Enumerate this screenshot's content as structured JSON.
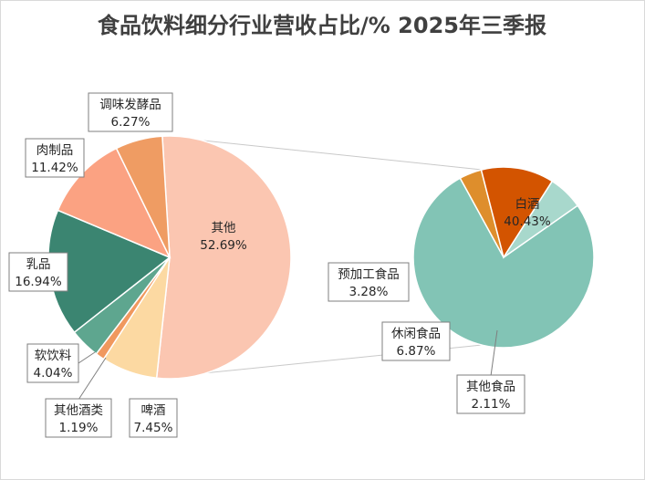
{
  "title": "食品饮料细分行业营收占比/% 2025年三季报",
  "chart_data": {
    "type": "pie",
    "subtype": "pie-of-pie",
    "title": "食品饮料细分行业营收占比/% 2025年三季报",
    "main_pie": [
      {
        "name": "其他",
        "value": 52.69,
        "label": "52.69%",
        "color": "#fbc6b1"
      },
      {
        "name": "啤酒",
        "value": 7.45,
        "label": "7.45%",
        "color": "#fcd9a2"
      },
      {
        "name": "其他酒类",
        "value": 1.19,
        "label": "1.19%",
        "color": "#f0985e"
      },
      {
        "name": "软饮料",
        "value": 4.04,
        "label": "4.04%",
        "color": "#5ea68f"
      },
      {
        "name": "乳品",
        "value": 16.94,
        "label": "16.94%",
        "color": "#3b8571"
      },
      {
        "name": "肉制品",
        "value": 11.42,
        "label": "11.42%",
        "color": "#fba282"
      },
      {
        "name": "调味发酵品",
        "value": 6.27,
        "label": "6.27%",
        "color": "#ef9c63"
      }
    ],
    "secondary_pie": [
      {
        "name": "白酒",
        "value": 40.43,
        "label": "40.43%",
        "color": "#82c4b5"
      },
      {
        "name": "其他食品",
        "value": 2.11,
        "label": "2.11%",
        "color": "#de8e2c"
      },
      {
        "name": "休闲食品",
        "value": 6.87,
        "label": "6.87%",
        "color": "#d35400"
      },
      {
        "name": "预加工食品",
        "value": 3.28,
        "label": "3.28%",
        "color": "#a8d8cc"
      }
    ],
    "legend": "none",
    "data_labels": "category name and value, boxed"
  }
}
